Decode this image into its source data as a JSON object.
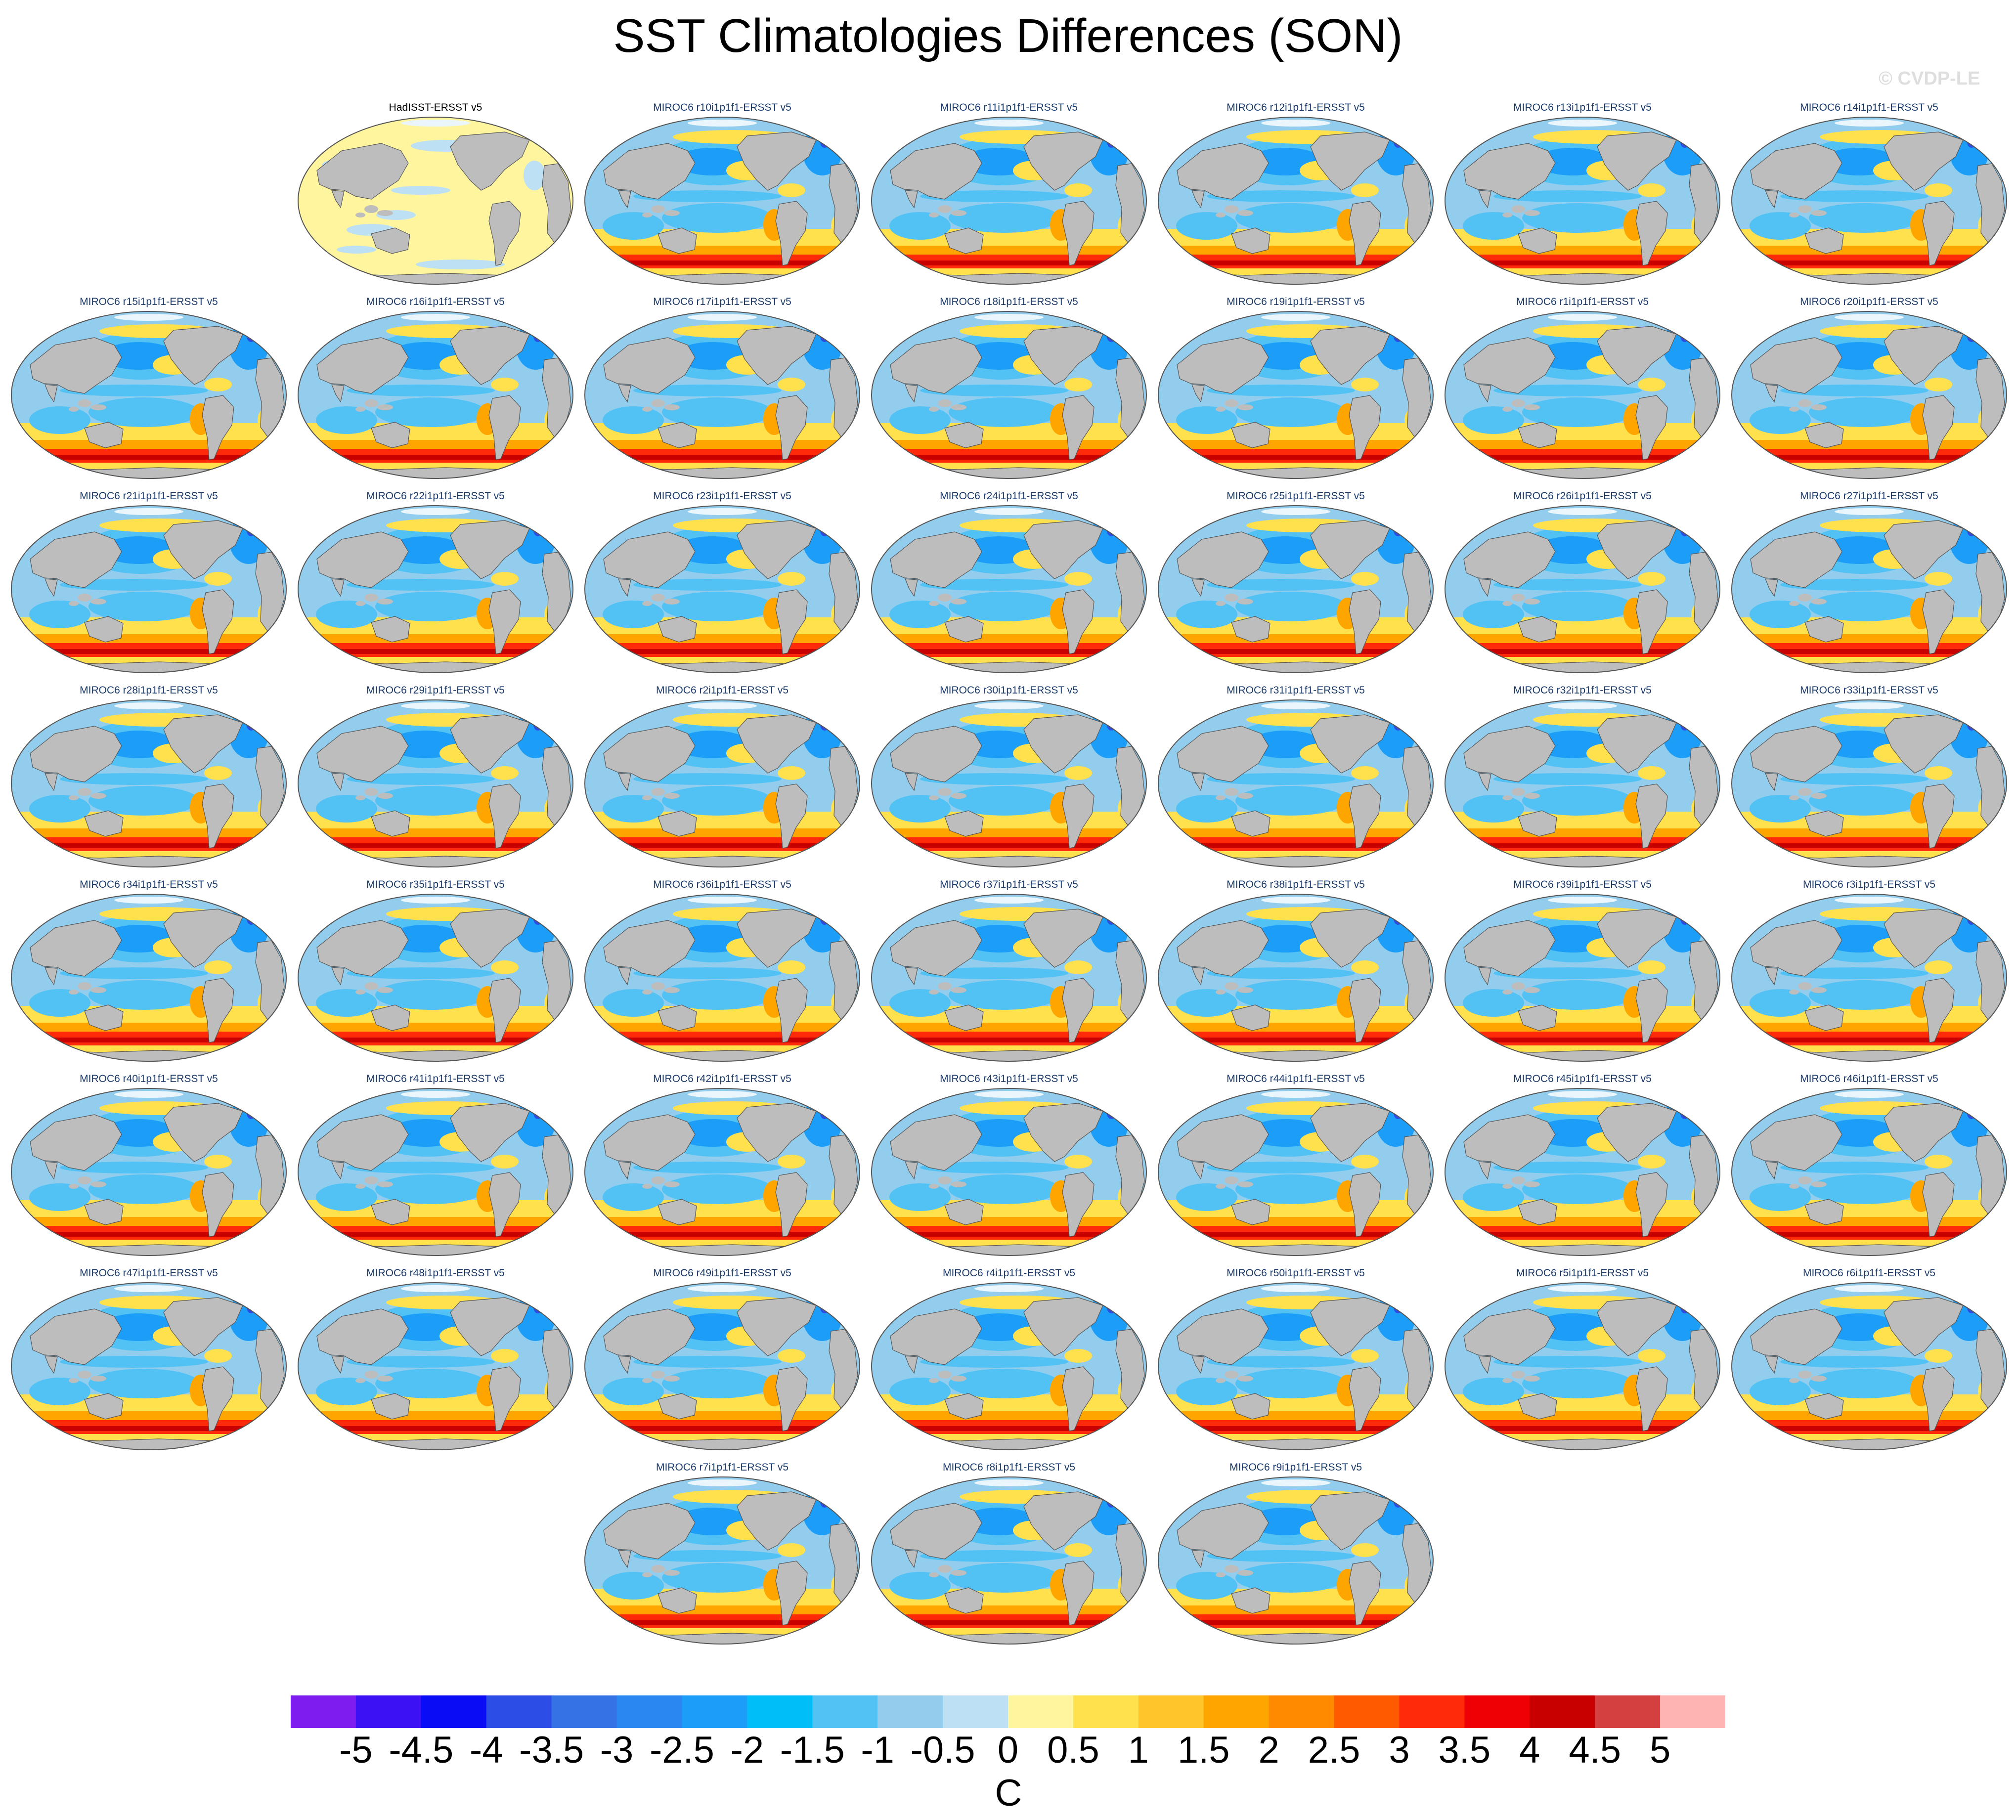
{
  "title": "SST Climatologies Differences (SON)",
  "watermark": "© CVDP-LE",
  "panels": [
    {
      "label": "HadISST-ERSST v5",
      "kind": "obs"
    },
    {
      "label": "MIROC6 r10i1p1f1-ERSST v5",
      "kind": "model"
    },
    {
      "label": "MIROC6 r11i1p1f1-ERSST v5",
      "kind": "model"
    },
    {
      "label": "MIROC6 r12i1p1f1-ERSST v5",
      "kind": "model"
    },
    {
      "label": "MIROC6 r13i1p1f1-ERSST v5",
      "kind": "model"
    },
    {
      "label": "MIROC6 r14i1p1f1-ERSST v5",
      "kind": "model"
    },
    {
      "label": "MIROC6 r15i1p1f1-ERSST v5",
      "kind": "model"
    },
    {
      "label": "MIROC6 r16i1p1f1-ERSST v5",
      "kind": "model"
    },
    {
      "label": "MIROC6 r17i1p1f1-ERSST v5",
      "kind": "model"
    },
    {
      "label": "MIROC6 r18i1p1f1-ERSST v5",
      "kind": "model"
    },
    {
      "label": "MIROC6 r19i1p1f1-ERSST v5",
      "kind": "model"
    },
    {
      "label": "MIROC6 r1i1p1f1-ERSST v5",
      "kind": "model"
    },
    {
      "label": "MIROC6 r20i1p1f1-ERSST v5",
      "kind": "model"
    },
    {
      "label": "MIROC6 r21i1p1f1-ERSST v5",
      "kind": "model"
    },
    {
      "label": "MIROC6 r22i1p1f1-ERSST v5",
      "kind": "model"
    },
    {
      "label": "MIROC6 r23i1p1f1-ERSST v5",
      "kind": "model"
    },
    {
      "label": "MIROC6 r24i1p1f1-ERSST v5",
      "kind": "model"
    },
    {
      "label": "MIROC6 r25i1p1f1-ERSST v5",
      "kind": "model"
    },
    {
      "label": "MIROC6 r26i1p1f1-ERSST v5",
      "kind": "model"
    },
    {
      "label": "MIROC6 r27i1p1f1-ERSST v5",
      "kind": "model"
    },
    {
      "label": "MIROC6 r28i1p1f1-ERSST v5",
      "kind": "model"
    },
    {
      "label": "MIROC6 r29i1p1f1-ERSST v5",
      "kind": "model"
    },
    {
      "label": "MIROC6 r2i1p1f1-ERSST v5",
      "kind": "model"
    },
    {
      "label": "MIROC6 r30i1p1f1-ERSST v5",
      "kind": "model"
    },
    {
      "label": "MIROC6 r31i1p1f1-ERSST v5",
      "kind": "model"
    },
    {
      "label": "MIROC6 r32i1p1f1-ERSST v5",
      "kind": "model"
    },
    {
      "label": "MIROC6 r33i1p1f1-ERSST v5",
      "kind": "model"
    },
    {
      "label": "MIROC6 r34i1p1f1-ERSST v5",
      "kind": "model"
    },
    {
      "label": "MIROC6 r35i1p1f1-ERSST v5",
      "kind": "model"
    },
    {
      "label": "MIROC6 r36i1p1f1-ERSST v5",
      "kind": "model"
    },
    {
      "label": "MIROC6 r37i1p1f1-ERSST v5",
      "kind": "model"
    },
    {
      "label": "MIROC6 r38i1p1f1-ERSST v5",
      "kind": "model"
    },
    {
      "label": "MIROC6 r39i1p1f1-ERSST v5",
      "kind": "model"
    },
    {
      "label": "MIROC6 r3i1p1f1-ERSST v5",
      "kind": "model"
    },
    {
      "label": "MIROC6 r40i1p1f1-ERSST v5",
      "kind": "model"
    },
    {
      "label": "MIROC6 r41i1p1f1-ERSST v5",
      "kind": "model"
    },
    {
      "label": "MIROC6 r42i1p1f1-ERSST v5",
      "kind": "model"
    },
    {
      "label": "MIROC6 r43i1p1f1-ERSST v5",
      "kind": "model"
    },
    {
      "label": "MIROC6 r44i1p1f1-ERSST v5",
      "kind": "model"
    },
    {
      "label": "MIROC6 r45i1p1f1-ERSST v5",
      "kind": "model"
    },
    {
      "label": "MIROC6 r46i1p1f1-ERSST v5",
      "kind": "model"
    },
    {
      "label": "MIROC6 r47i1p1f1-ERSST v5",
      "kind": "model"
    },
    {
      "label": "MIROC6 r48i1p1f1-ERSST v5",
      "kind": "model"
    },
    {
      "label": "MIROC6 r49i1p1f1-ERSST v5",
      "kind": "model"
    },
    {
      "label": "MIROC6 r4i1p1f1-ERSST v5",
      "kind": "model"
    },
    {
      "label": "MIROC6 r50i1p1f1-ERSST v5",
      "kind": "model"
    },
    {
      "label": "MIROC6 r5i1p1f1-ERSST v5",
      "kind": "model"
    },
    {
      "label": "MIROC6 r6i1p1f1-ERSST v5",
      "kind": "model"
    },
    {
      "label": "MIROC6 r7i1p1f1-ERSST v5",
      "kind": "model"
    },
    {
      "label": "MIROC6 r8i1p1f1-ERSST v5",
      "kind": "model"
    },
    {
      "label": "MIROC6 r9i1p1f1-ERSST v5",
      "kind": "model"
    }
  ],
  "colorbar": {
    "unit": "C",
    "tick_labels": [
      "-5",
      "-4.5",
      "-4",
      "-3.5",
      "-3",
      "-2.5",
      "-2",
      "-1.5",
      "-1",
      "-0.5",
      "0",
      "0.5",
      "1",
      "1.5",
      "2",
      "2.5",
      "3",
      "3.5",
      "4",
      "4.5",
      "5"
    ],
    "colors": [
      "#7c1cee",
      "#3c12f5",
      "#0a0cf5",
      "#2c4ee6",
      "#3473e6",
      "#2a86f0",
      "#1c9ef8",
      "#00bff8",
      "#52c2f5",
      "#93cdee",
      "#bde0f4",
      "#fff59e",
      "#ffe04d",
      "#ffc52a",
      "#ffa500",
      "#ff8a00",
      "#ff5a00",
      "#ff2a0a",
      "#ee0005",
      "#c90000",
      "#d44040",
      "#ffb4b4"
    ]
  },
  "map_colors": {
    "land": "#bdbdbd",
    "cold_strong": "#1c9ef8",
    "cold_mid": "#52c2f5",
    "cold_light": "#93cdee",
    "neutral_cold": "#bde0f4",
    "neutral_warm": "#fff59e",
    "warm_light": "#ffe04d",
    "warm_mid": "#ffa500",
    "warm_strong": "#ff2a0a",
    "warm_extreme": "#c90000",
    "deep_blue": "#2c4ee6"
  }
}
